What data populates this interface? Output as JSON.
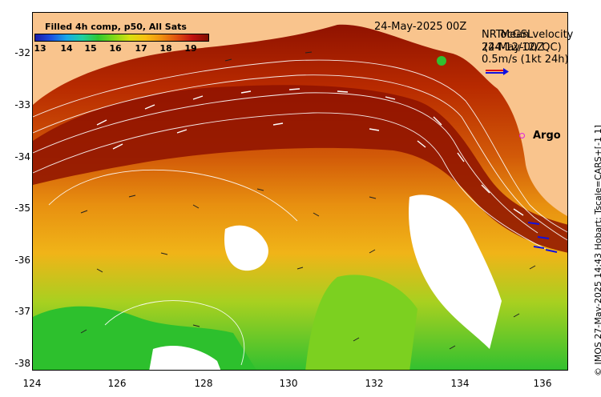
{
  "colorbar": {
    "title": "Filled 4h comp, p50, All Sats",
    "labels": [
      "13",
      "14",
      "15",
      "16",
      "17",
      "18",
      "19"
    ]
  },
  "map": {
    "date": "24-May-2025 00Z",
    "latitude_ticks": [
      "-32",
      "-33",
      "-34",
      "-35",
      "-36",
      "-37",
      "-38"
    ],
    "longitude_ticks": [
      "124",
      "126",
      "128",
      "130",
      "132",
      "134",
      "136"
    ]
  },
  "legend": {
    "line1": "NRTocGSL",
    "line1_overlay": "Mean velocity",
    "line2": "24-May-00Z",
    "line2_overlay": "(24-12/12/ QC)",
    "line3": "0.5m/s (1kt 24h)"
  },
  "argo": {
    "label": "Argo",
    "color": "#e020e0"
  },
  "credit": "© IMOS 27-May-2025 14:43 Hobart; Tscale=CARS+[-1 1]",
  "colors": {
    "land": "#f9c48d",
    "warm": "#b02000",
    "cold": "#18c018",
    "no_data": "#ffffff"
  }
}
